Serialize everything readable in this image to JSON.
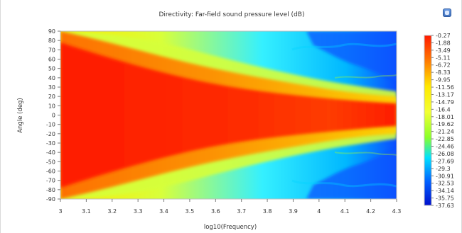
{
  "window": {
    "title": "Directivity: Far-field sound pressure level (dB)",
    "toolbar": {
      "export_icon": "export-image-icon"
    }
  },
  "chart_data": {
    "type": "heatmap",
    "title": "Directivity: Far-field sound pressure level (dB)",
    "xlabel": "log10(Frequency)",
    "ylabel": "Angle (deg)",
    "xlim": [
      3,
      4.3
    ],
    "ylim": [
      -90,
      90
    ],
    "x_ticks": [
      "3",
      "3.1",
      "3.2",
      "3.3",
      "3.4",
      "3.5",
      "3.6",
      "3.7",
      "3.8",
      "3.9",
      "4",
      "4.1",
      "4.2",
      "4.3"
    ],
    "y_ticks": [
      "90",
      "80",
      "70",
      "60",
      "50",
      "40",
      "30",
      "20",
      "10",
      "0",
      "-10",
      "-20",
      "-30",
      "-40",
      "-50",
      "-60",
      "-70",
      "-80",
      "-90"
    ],
    "colorbar": {
      "labels": [
        "-0.27",
        "-1.88",
        "-3.49",
        "-5.11",
        "-6.72",
        "-8.33",
        "-9.95",
        "-11.56",
        "-13.17",
        "-14.79",
        "-16.4",
        "-18.01",
        "-19.62",
        "-21.24",
        "-22.85",
        "-24.46",
        "-26.08",
        "-27.69",
        "-29.3",
        "-30.91",
        "-32.53",
        "-34.14",
        "-35.75",
        "-37.63"
      ],
      "max": -0.27,
      "min": -37.63,
      "colormap": "rainbow (red → blue)",
      "colors": [
        "#ff1a00",
        "#ff7a00",
        "#ffe800",
        "#f2ff32",
        "#8aff2a",
        "#00e0ff",
        "#0060ff",
        "#0010cc"
      ]
    }
  }
}
